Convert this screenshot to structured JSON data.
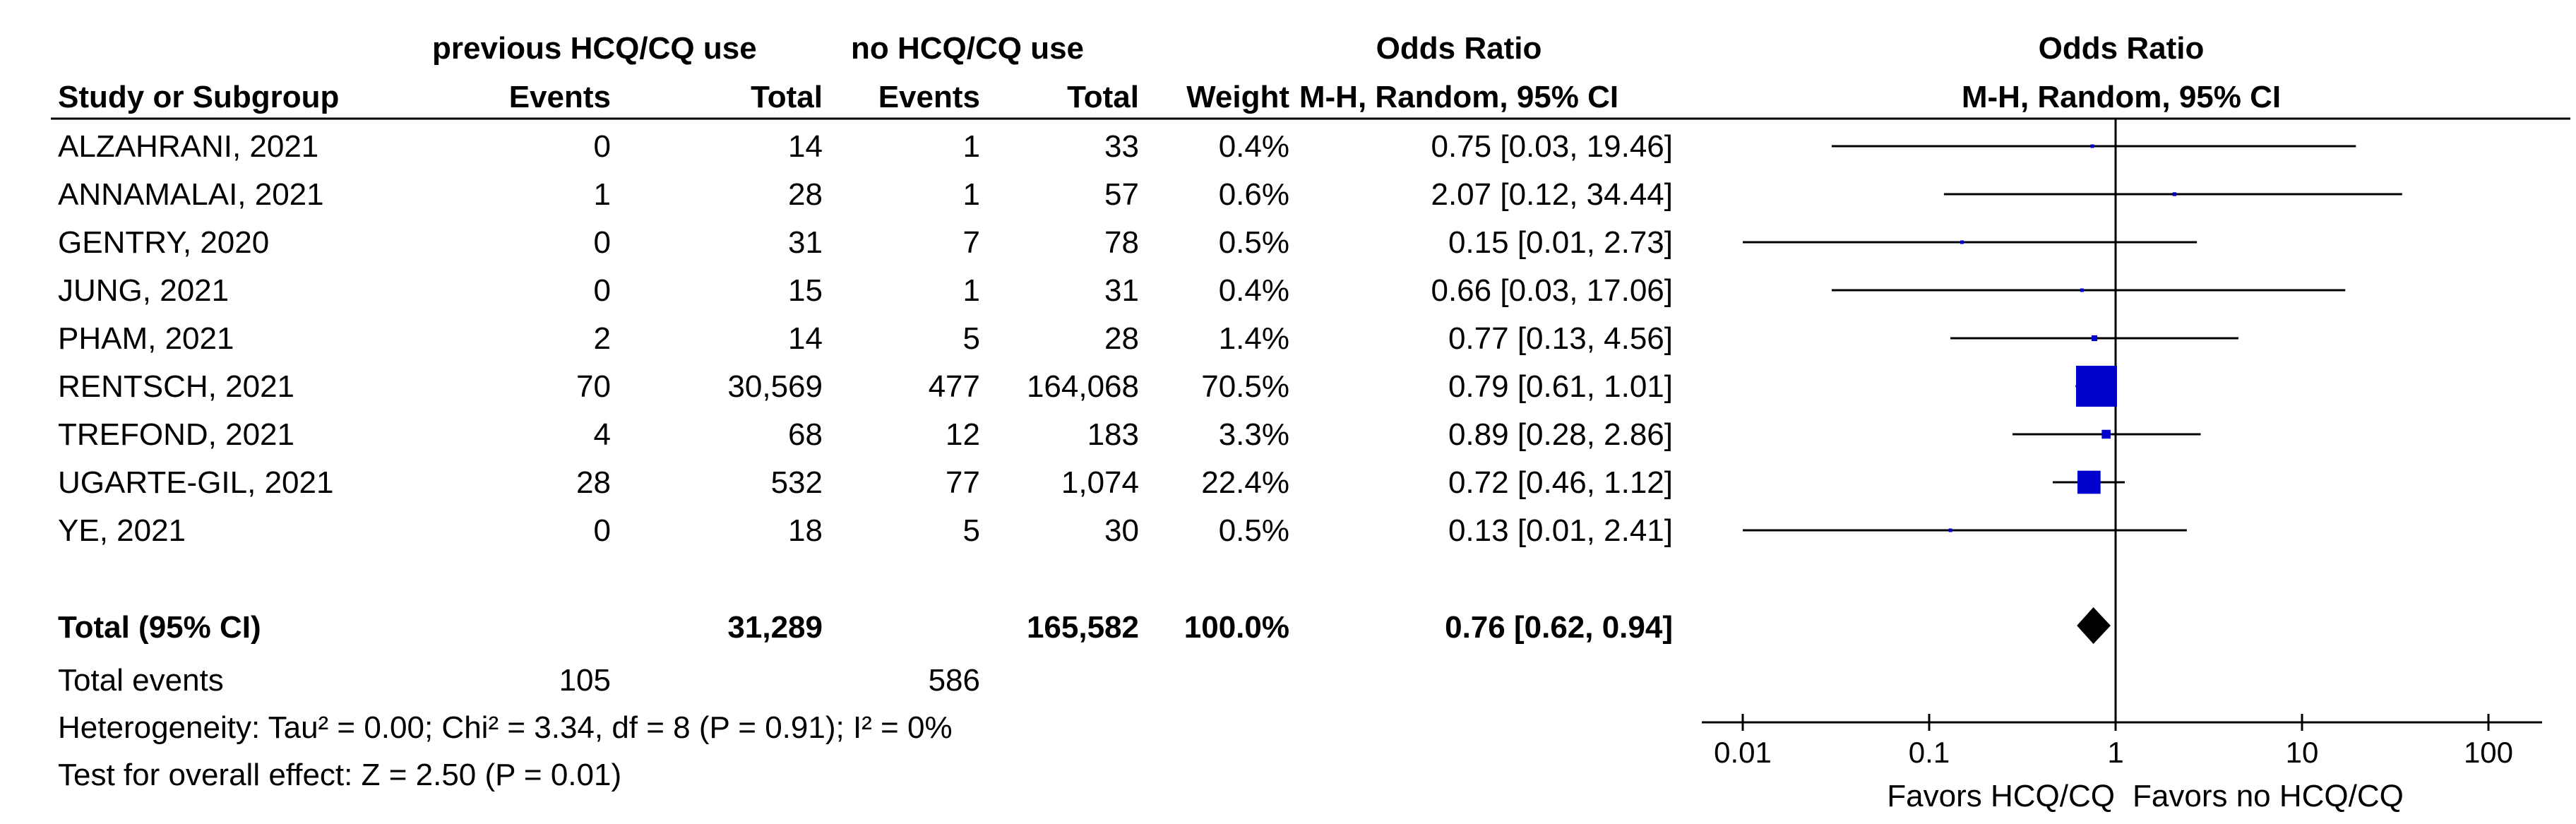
{
  "table": {
    "group1_header": "previous HCQ/CQ use",
    "group2_header": "no HCQ/CQ use",
    "or_header_top": "Odds Ratio",
    "or_header_sub": "M-H, Random, 95% CI",
    "columns": [
      "Study or Subgroup",
      "Events",
      "Total",
      "Events",
      "Total",
      "Weight",
      "M-H, Random, 95% CI"
    ],
    "rows": [
      {
        "study": "ALZAHRANI, 2021",
        "e1": "0",
        "t1": "14",
        "e2": "1",
        "t2": "33",
        "weight": "0.4%",
        "ci": "0.75 [0.03, 19.46]"
      },
      {
        "study": "ANNAMALAI, 2021",
        "e1": "1",
        "t1": "28",
        "e2": "1",
        "t2": "57",
        "weight": "0.6%",
        "ci": "2.07 [0.12, 34.44]"
      },
      {
        "study": "GENTRY, 2020",
        "e1": "0",
        "t1": "31",
        "e2": "7",
        "t2": "78",
        "weight": "0.5%",
        "ci": "0.15 [0.01, 2.73]"
      },
      {
        "study": "JUNG, 2021",
        "e1": "0",
        "t1": "15",
        "e2": "1",
        "t2": "31",
        "weight": "0.4%",
        "ci": "0.66 [0.03, 17.06]"
      },
      {
        "study": "PHAM, 2021",
        "e1": "2",
        "t1": "14",
        "e2": "5",
        "t2": "28",
        "weight": "1.4%",
        "ci": "0.77 [0.13, 4.56]"
      },
      {
        "study": "RENTSCH, 2021",
        "e1": "70",
        "t1": "30,569",
        "e2": "477",
        "t2": "164,068",
        "weight": "70.5%",
        "ci": "0.79 [0.61, 1.01]"
      },
      {
        "study": "TREFOND, 2021",
        "e1": "4",
        "t1": "68",
        "e2": "12",
        "t2": "183",
        "weight": "3.3%",
        "ci": "0.89 [0.28, 2.86]"
      },
      {
        "study": "UGARTE-GIL, 2021",
        "e1": "28",
        "t1": "532",
        "e2": "77",
        "t2": "1,074",
        "weight": "22.4%",
        "ci": "0.72 [0.46, 1.12]"
      },
      {
        "study": "YE, 2021",
        "e1": "0",
        "t1": "18",
        "e2": "5",
        "t2": "30",
        "weight": "0.5%",
        "ci": "0.13 [0.01, 2.41]"
      }
    ],
    "total": {
      "label": "Total (95% CI)",
      "t1": "31,289",
      "t2": "165,582",
      "weight": "100.0%",
      "ci": "0.76 [0.62, 0.94]"
    },
    "total_events": {
      "label": "Total events",
      "e1": "105",
      "e2": "586"
    },
    "heterogeneity": "Heterogeneity: Tau² = 0.00; Chi² = 3.34, df = 8 (P = 0.91); I² = 0%",
    "overall_effect": "Test for overall effect: Z = 2.50 (P = 0.01)"
  },
  "chart_data": {
    "type": "forest",
    "title": "Odds Ratio",
    "subtitle": "M-H, Random, 95% CI",
    "x_scale": "log",
    "xlim": [
      0.01,
      100
    ],
    "x_ticks": [
      0.01,
      0.1,
      1,
      10,
      100
    ],
    "x_tick_labels": [
      "0.01",
      "0.1",
      "1",
      "10",
      "100"
    ],
    "null_line": 1,
    "favors_left": "Favors HCQ/CQ",
    "favors_right": "Favors no HCQ/CQ",
    "marker_color": "#0000cc",
    "studies": [
      {
        "name": "ALZAHRANI, 2021",
        "or": 0.75,
        "lo": 0.03,
        "hi": 19.46,
        "weight": 0.4
      },
      {
        "name": "ANNAMALAI, 2021",
        "or": 2.07,
        "lo": 0.12,
        "hi": 34.44,
        "weight": 0.6
      },
      {
        "name": "GENTRY, 2020",
        "or": 0.15,
        "lo": 0.01,
        "hi": 2.73,
        "weight": 0.5
      },
      {
        "name": "JUNG, 2021",
        "or": 0.66,
        "lo": 0.03,
        "hi": 17.06,
        "weight": 0.4
      },
      {
        "name": "PHAM, 2021",
        "or": 0.77,
        "lo": 0.13,
        "hi": 4.56,
        "weight": 1.4
      },
      {
        "name": "RENTSCH, 2021",
        "or": 0.79,
        "lo": 0.61,
        "hi": 1.01,
        "weight": 70.5
      },
      {
        "name": "TREFOND, 2021",
        "or": 0.89,
        "lo": 0.28,
        "hi": 2.86,
        "weight": 3.3
      },
      {
        "name": "UGARTE-GIL, 2021",
        "or": 0.72,
        "lo": 0.46,
        "hi": 1.12,
        "weight": 22.4
      },
      {
        "name": "YE, 2021",
        "or": 0.13,
        "lo": 0.01,
        "hi": 2.41,
        "weight": 0.5
      }
    ],
    "pooled": {
      "name": "Total (95% CI)",
      "or": 0.76,
      "lo": 0.62,
      "hi": 0.94
    }
  }
}
